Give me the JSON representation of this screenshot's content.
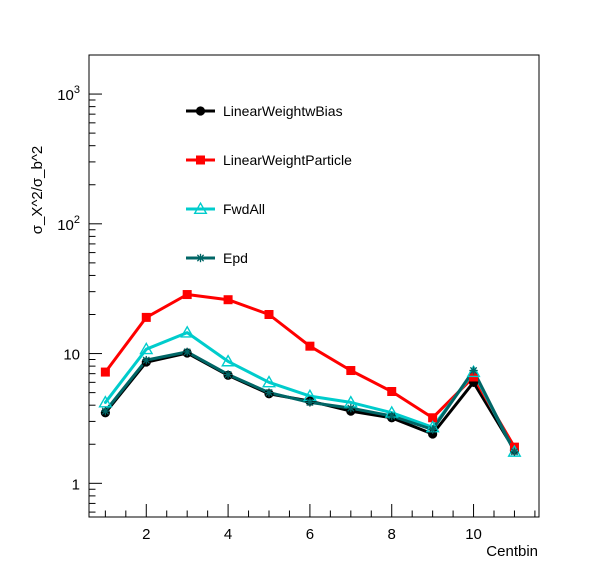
{
  "chart_data": {
    "type": "line",
    "title": "",
    "xlabel": "Centbin",
    "ylabel": "σ_X^2/σ_b^2",
    "xlim": [
      0.6,
      11.6
    ],
    "ylim": [
      0.55,
      2000
    ],
    "yscale": "log",
    "grid": false,
    "legend_position": "top-left inside",
    "x_ticks": [
      {
        "value": 2,
        "label": "2"
      },
      {
        "value": 4,
        "label": "4"
      },
      {
        "value": 6,
        "label": "6"
      },
      {
        "value": 8,
        "label": "8"
      },
      {
        "value": 10,
        "label": "10"
      }
    ],
    "y_ticks": [
      {
        "value": 1,
        "base": "1",
        "exp": ""
      },
      {
        "value": 10,
        "base": "10",
        "exp": ""
      },
      {
        "value": 100,
        "base": "10",
        "exp": "2"
      },
      {
        "value": 1000,
        "base": "10",
        "exp": "3"
      }
    ],
    "x": [
      1,
      2,
      3,
      4,
      5,
      6,
      7,
      8,
      9,
      10,
      11
    ],
    "series": [
      {
        "name": "LinearWeightwBias",
        "color": "#000000",
        "marker": "circle",
        "values": [
          3.5,
          8.6,
          10.1,
          6.8,
          4.9,
          4.3,
          3.6,
          3.2,
          2.4,
          6.0,
          1.8
        ]
      },
      {
        "name": "LinearWeightParticle",
        "color": "#ff0000",
        "marker": "square",
        "values": [
          7.2,
          19.0,
          28.5,
          26.0,
          20.0,
          11.4,
          7.4,
          5.1,
          3.2,
          6.6,
          1.9
        ]
      },
      {
        "name": "FwdAll",
        "color": "#00cccc",
        "marker": "triangle-open",
        "values": [
          4.2,
          10.8,
          14.5,
          8.7,
          6.0,
          4.7,
          4.2,
          3.5,
          2.7,
          7.2,
          1.75
        ]
      },
      {
        "name": "Epd",
        "color": "#006666",
        "marker": "star",
        "values": [
          3.6,
          8.9,
          10.3,
          6.9,
          5.0,
          4.2,
          3.8,
          3.3,
          2.6,
          7.4,
          1.75
        ]
      }
    ]
  }
}
